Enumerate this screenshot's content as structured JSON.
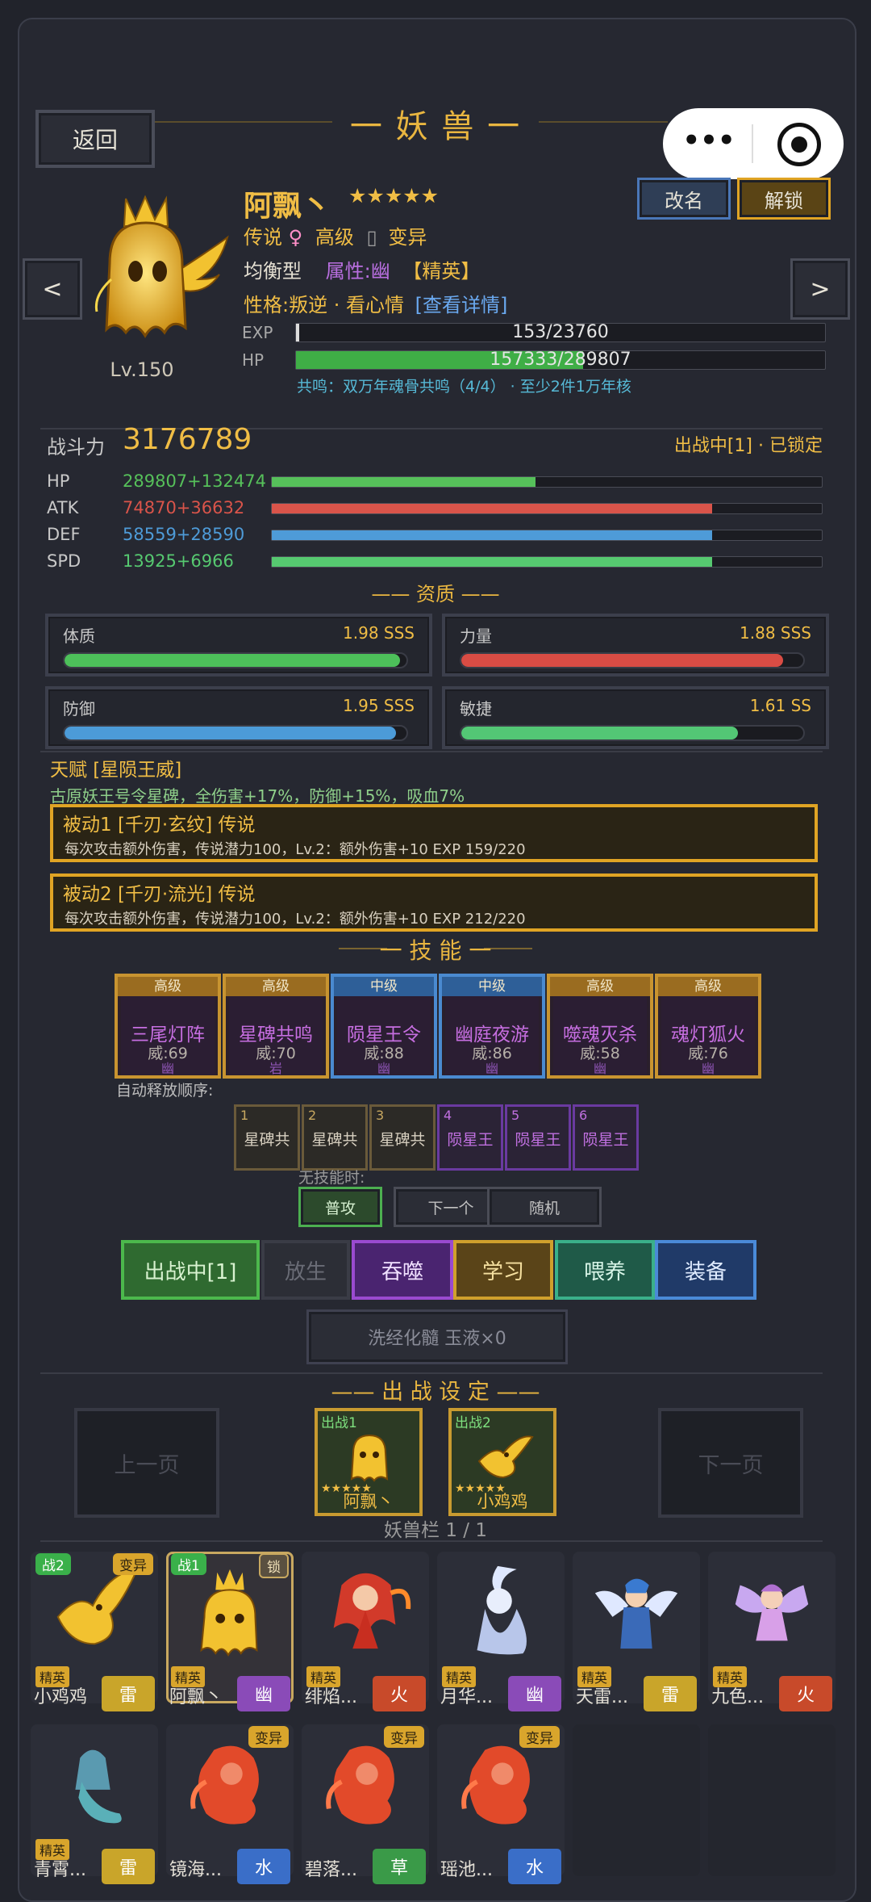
{
  "header": {
    "back": "返回",
    "title": "一 妖 兽 一"
  },
  "capsule": {
    "menu": "•••"
  },
  "pet": {
    "name": "阿飘丶",
    "stars": "★★★★★",
    "level": "Lv.150",
    "rarity": "传说",
    "gender": "♀",
    "grade": "高级",
    "mutation": "变异",
    "mut_icon": "▯",
    "type": "均衡型",
    "attribute": "属性:幽",
    "elite": "【精英】",
    "nature": "性格:叛逆 · 看心情",
    "nature_link": "[查看详情]",
    "exp_label": "EXP",
    "exp_value": "153/23760",
    "exp_ratio": 0.0064,
    "hp_label": "HP",
    "hp_value": "157333/289807",
    "hp_ratio": 0.543,
    "resonance": "共鸣：双万年魂骨共鸣（4/4） · 至少2件1万年核"
  },
  "buttons": {
    "rename": "改名",
    "unlock": "解锁",
    "prev": "<",
    "next": ">"
  },
  "combat": {
    "label": "战斗力",
    "value": "3176789",
    "status": "出战中[1] · 已锁定"
  },
  "stats": [
    {
      "label": "HP",
      "value": "289807+132474",
      "color": "#56c05a",
      "ratio": 0.48
    },
    {
      "label": "ATK",
      "value": "74870+36632",
      "color": "#d9544a",
      "ratio": 0.8
    },
    {
      "label": "DEF",
      "value": "58559+28590",
      "color": "#4e9bd8",
      "ratio": 0.8
    },
    {
      "label": "SPD",
      "value": "13925+6966",
      "color": "#56c970",
      "ratio": 0.8
    }
  ],
  "aptitude": {
    "title": "—— 资质 ——",
    "items": [
      {
        "label": "体质",
        "value": "1.98 SSS",
        "color": "#4dc05a",
        "ratio": 0.98
      },
      {
        "label": "力量",
        "value": "1.88 SSS",
        "color": "#d94c44",
        "ratio": 0.94
      },
      {
        "label": "防御",
        "value": "1.95 SSS",
        "color": "#4c9bd8",
        "ratio": 0.97
      },
      {
        "label": "敏捷",
        "value": "1.61 SS",
        "color": "#53c775",
        "ratio": 0.81
      }
    ]
  },
  "talent": {
    "title": "天赋 [星陨王威]",
    "desc": "古原妖王号令星碑，全伤害+17%，防御+15%，吸血7%"
  },
  "passives": [
    {
      "title": "被动1 [千刃·玄纹] 传说",
      "desc": "每次攻击额外伤害，传说潜力100，Lv.2：额外伤害+10  EXP 159/220"
    },
    {
      "title": "被动2 [千刃·流光] 传说",
      "desc": "每次攻击额外伤害，传说潜力100，Lv.2：额外伤害+10  EXP 212/220"
    }
  ],
  "skills_title": "一 技 能 一",
  "skills": [
    {
      "tier": "高级",
      "name": "三尾灯阵",
      "power": "威:69",
      "elem": "幽",
      "tone": "gold"
    },
    {
      "tier": "高级",
      "name": "星碑共鸣",
      "power": "威:70",
      "elem": "岩",
      "tone": "gold"
    },
    {
      "tier": "中级",
      "name": "陨星王令",
      "power": "威:88",
      "elem": "幽",
      "tone": "blue"
    },
    {
      "tier": "中级",
      "name": "幽庭夜游",
      "power": "威:86",
      "elem": "幽",
      "tone": "blue"
    },
    {
      "tier": "高级",
      "name": "噬魂灭杀",
      "power": "威:58",
      "elem": "幽",
      "tone": "gold"
    },
    {
      "tier": "高级",
      "name": "魂灯狐火",
      "power": "威:76",
      "elem": "幽",
      "tone": "gold"
    }
  ],
  "auto_order": {
    "label": "自动释放顺序:",
    "slots": [
      {
        "n": "1",
        "t": "星碑共",
        "tone": "brown"
      },
      {
        "n": "2",
        "t": "星碑共",
        "tone": "brown"
      },
      {
        "n": "3",
        "t": "星碑共",
        "tone": "brown"
      },
      {
        "n": "4",
        "t": "陨星王",
        "tone": "purple"
      },
      {
        "n": "5",
        "t": "陨星王",
        "tone": "purple"
      },
      {
        "n": "6",
        "t": "陨星王",
        "tone": "purple"
      }
    ],
    "no_skill_label": "无技能时:",
    "modes": [
      "普攻",
      "下一个",
      "随机"
    ]
  },
  "actions": [
    "出战中[1]",
    "放生",
    "吞噬",
    "学习",
    "喂养",
    "装备"
  ],
  "wash": "洗经化髓  玉液×0",
  "battle": {
    "title": "—— 出 战 设 定 ——",
    "prev": "上一页",
    "next": "下一页",
    "slots": [
      {
        "badge": "出战1",
        "stars": "★★★★★",
        "name": "阿飘丶"
      },
      {
        "badge": "出战2",
        "stars": "★★★★★",
        "name": "小鸡鸡"
      }
    ],
    "bag": "妖兽栏 1 / 1"
  },
  "pets": [
    {
      "name": "小鸡鸡",
      "elem": "雷",
      "elem_color": "#c9a52a",
      "tag": "精英",
      "badge_l": "战2",
      "badge_r": "变异",
      "art": "yellow-bird"
    },
    {
      "name": "阿飘丶",
      "elem": "幽",
      "elem_color": "#8a4bb8",
      "tag": "精英",
      "badge_l": "战1",
      "badge_r": "锁",
      "art": "gold-ghost",
      "selected": true
    },
    {
      "name": "绯焰...",
      "elem": "火",
      "elem_color": "#c84a2a",
      "tag": "精英",
      "art": "red-dragon-girl"
    },
    {
      "name": "月华...",
      "elem": "幽",
      "elem_color": "#8a4bb8",
      "tag": "精英",
      "art": "moon-spirit"
    },
    {
      "name": "天雷...",
      "elem": "雷",
      "elem_color": "#c9a52a",
      "tag": "精英",
      "art": "thunder-angel"
    },
    {
      "name": "九色...",
      "elem": "火",
      "elem_color": "#c84a2a",
      "tag": "精英",
      "art": "fairy"
    },
    {
      "name": "青霄...",
      "elem": "雷",
      "elem_color": "#c9a52a",
      "tag": "精英",
      "art": "mermaid"
    },
    {
      "name": "镜海...",
      "elem": "水",
      "elem_color": "#3a6ec8",
      "badge_r": "变异",
      "art": "red-spirit"
    },
    {
      "name": "碧落...",
      "elem": "草",
      "elem_color": "#3a9a48",
      "badge_r": "变异",
      "art": "red-spirit"
    },
    {
      "name": "瑶池...",
      "elem": "水",
      "elem_color": "#3a6ec8",
      "badge_r": "变异",
      "art": "red-spirit"
    }
  ]
}
